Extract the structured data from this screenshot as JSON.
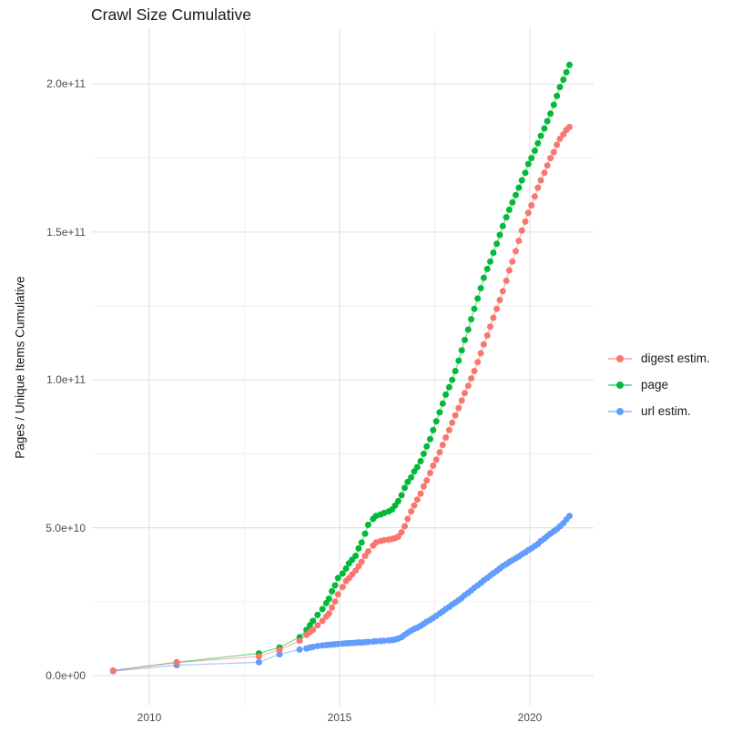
{
  "title": "Crawl Size Cumulative",
  "y_axis": {
    "label": "Pages / Unique Items Cumulative",
    "ticks": [
      {
        "label": "0.0e+00",
        "v": 0
      },
      {
        "label": "5.0e+10",
        "v": 5
      },
      {
        "label": "1.0e+11",
        "v": 10
      },
      {
        "label": "1.5e+11",
        "v": 15
      },
      {
        "label": "2.0e+11",
        "v": 20
      }
    ],
    "minor_v": [
      2.5,
      7.5,
      12.5,
      17.5
    ]
  },
  "x_axis": {
    "ticks": [
      {
        "label": "2010",
        "year": 2010
      },
      {
        "label": "2015",
        "year": 2015
      },
      {
        "label": "2020",
        "year": 2020
      }
    ],
    "minor_years": [
      2012.5,
      2017.5
    ]
  },
  "legend": {
    "items": [
      {
        "label": "digest estim.",
        "color": "#F8766D"
      },
      {
        "label": "page",
        "color": "#00BA38"
      },
      {
        "label": "url estim.",
        "color": "#619CFF"
      }
    ]
  },
  "chart_data": {
    "type": "line",
    "title": "Crawl Size Cumulative",
    "xlabel": "",
    "ylabel": "Pages / Unique Items Cumulative",
    "x_unit": "decimal year (crawl date)",
    "value_unit": "items, in units of 1e10 (e.g. 20.65 = 2.065e+11)",
    "xlim": [
      2008.4,
      2021.7
    ],
    "ylim": [
      0,
      220000000000.0
    ],
    "grid": true,
    "legend_position": "right",
    "marker": "point-on-line",
    "series": [
      {
        "name": "page",
        "color": "#00BA38",
        "points": [
          [
            2009.05,
            0.17
          ],
          [
            2010.72,
            0.45
          ],
          [
            2012.88,
            0.75
          ],
          [
            2013.42,
            0.95
          ],
          [
            2013.95,
            1.3
          ],
          [
            2014.13,
            1.55
          ],
          [
            2014.22,
            1.7
          ],
          [
            2014.3,
            1.85
          ],
          [
            2014.42,
            2.05
          ],
          [
            2014.55,
            2.25
          ],
          [
            2014.65,
            2.45
          ],
          [
            2014.72,
            2.6
          ],
          [
            2014.8,
            2.85
          ],
          [
            2014.88,
            3.05
          ],
          [
            2014.96,
            3.3
          ],
          [
            2015.08,
            3.45
          ],
          [
            2015.17,
            3.62
          ],
          [
            2015.25,
            3.8
          ],
          [
            2015.33,
            3.92
          ],
          [
            2015.42,
            4.05
          ],
          [
            2015.5,
            4.3
          ],
          [
            2015.58,
            4.5
          ],
          [
            2015.67,
            4.8
          ],
          [
            2015.75,
            5.1
          ],
          [
            2015.88,
            5.3
          ],
          [
            2015.96,
            5.4
          ],
          [
            2016.08,
            5.45
          ],
          [
            2016.17,
            5.5
          ],
          [
            2016.29,
            5.55
          ],
          [
            2016.38,
            5.62
          ],
          [
            2016.46,
            5.75
          ],
          [
            2016.54,
            5.9
          ],
          [
            2016.63,
            6.1
          ],
          [
            2016.71,
            6.35
          ],
          [
            2016.79,
            6.55
          ],
          [
            2016.88,
            6.7
          ],
          [
            2016.96,
            6.9
          ],
          [
            2017.04,
            7.05
          ],
          [
            2017.13,
            7.25
          ],
          [
            2017.21,
            7.5
          ],
          [
            2017.29,
            7.75
          ],
          [
            2017.38,
            8.0
          ],
          [
            2017.46,
            8.3
          ],
          [
            2017.54,
            8.6
          ],
          [
            2017.63,
            8.9
          ],
          [
            2017.71,
            9.2
          ],
          [
            2017.79,
            9.5
          ],
          [
            2017.88,
            9.75
          ],
          [
            2017.96,
            10.0
          ],
          [
            2018.04,
            10.3
          ],
          [
            2018.13,
            10.65
          ],
          [
            2018.21,
            11.0
          ],
          [
            2018.29,
            11.35
          ],
          [
            2018.38,
            11.7
          ],
          [
            2018.46,
            12.05
          ],
          [
            2018.54,
            12.4
          ],
          [
            2018.63,
            12.75
          ],
          [
            2018.71,
            13.1
          ],
          [
            2018.79,
            13.45
          ],
          [
            2018.88,
            13.75
          ],
          [
            2018.96,
            14.0
          ],
          [
            2019.04,
            14.3
          ],
          [
            2019.13,
            14.6
          ],
          [
            2019.21,
            14.9
          ],
          [
            2019.29,
            15.2
          ],
          [
            2019.38,
            15.5
          ],
          [
            2019.46,
            15.75
          ],
          [
            2019.54,
            16.0
          ],
          [
            2019.63,
            16.25
          ],
          [
            2019.71,
            16.5
          ],
          [
            2019.79,
            16.75
          ],
          [
            2019.88,
            17.0
          ],
          [
            2019.96,
            17.3
          ],
          [
            2020.04,
            17.5
          ],
          [
            2020.13,
            17.75
          ],
          [
            2020.21,
            18.0
          ],
          [
            2020.29,
            18.25
          ],
          [
            2020.38,
            18.5
          ],
          [
            2020.46,
            18.75
          ],
          [
            2020.54,
            19.0
          ],
          [
            2020.63,
            19.3
          ],
          [
            2020.71,
            19.6
          ],
          [
            2020.79,
            19.9
          ],
          [
            2020.88,
            20.15
          ],
          [
            2020.96,
            20.4
          ],
          [
            2021.04,
            20.65
          ]
        ]
      },
      {
        "name": "url estim.",
        "color": "#619CFF",
        "points": [
          [
            2009.05,
            0.15
          ],
          [
            2010.72,
            0.35
          ],
          [
            2012.88,
            0.45
          ],
          [
            2013.42,
            0.72
          ],
          [
            2013.95,
            0.88
          ],
          [
            2014.13,
            0.92
          ],
          [
            2014.22,
            0.95
          ],
          [
            2014.3,
            0.97
          ],
          [
            2014.42,
            1.0
          ],
          [
            2014.55,
            1.02
          ],
          [
            2014.65,
            1.03
          ],
          [
            2014.72,
            1.04
          ],
          [
            2014.8,
            1.05
          ],
          [
            2014.88,
            1.06
          ],
          [
            2014.96,
            1.07
          ],
          [
            2015.08,
            1.08
          ],
          [
            2015.17,
            1.09
          ],
          [
            2015.25,
            1.1
          ],
          [
            2015.33,
            1.1
          ],
          [
            2015.42,
            1.11
          ],
          [
            2015.5,
            1.12
          ],
          [
            2015.58,
            1.12
          ],
          [
            2015.67,
            1.13
          ],
          [
            2015.75,
            1.14
          ],
          [
            2015.88,
            1.15
          ],
          [
            2015.96,
            1.16
          ],
          [
            2016.08,
            1.17
          ],
          [
            2016.17,
            1.18
          ],
          [
            2016.29,
            1.19
          ],
          [
            2016.38,
            1.2
          ],
          [
            2016.46,
            1.22
          ],
          [
            2016.54,
            1.25
          ],
          [
            2016.63,
            1.3
          ],
          [
            2016.71,
            1.38
          ],
          [
            2016.79,
            1.45
          ],
          [
            2016.88,
            1.52
          ],
          [
            2016.96,
            1.58
          ],
          [
            2017.04,
            1.62
          ],
          [
            2017.13,
            1.68
          ],
          [
            2017.21,
            1.75
          ],
          [
            2017.29,
            1.82
          ],
          [
            2017.38,
            1.88
          ],
          [
            2017.46,
            1.95
          ],
          [
            2017.54,
            2.02
          ],
          [
            2017.63,
            2.1
          ],
          [
            2017.71,
            2.17
          ],
          [
            2017.79,
            2.25
          ],
          [
            2017.88,
            2.32
          ],
          [
            2017.96,
            2.4
          ],
          [
            2018.04,
            2.47
          ],
          [
            2018.13,
            2.55
          ],
          [
            2018.21,
            2.63
          ],
          [
            2018.29,
            2.72
          ],
          [
            2018.38,
            2.8
          ],
          [
            2018.46,
            2.88
          ],
          [
            2018.54,
            2.97
          ],
          [
            2018.63,
            3.05
          ],
          [
            2018.71,
            3.13
          ],
          [
            2018.79,
            3.22
          ],
          [
            2018.88,
            3.3
          ],
          [
            2018.96,
            3.38
          ],
          [
            2019.04,
            3.46
          ],
          [
            2019.13,
            3.54
          ],
          [
            2019.21,
            3.62
          ],
          [
            2019.29,
            3.7
          ],
          [
            2019.38,
            3.77
          ],
          [
            2019.46,
            3.84
          ],
          [
            2019.54,
            3.9
          ],
          [
            2019.63,
            3.97
          ],
          [
            2019.71,
            4.03
          ],
          [
            2019.79,
            4.1
          ],
          [
            2019.88,
            4.17
          ],
          [
            2019.96,
            4.24
          ],
          [
            2020.04,
            4.3
          ],
          [
            2020.13,
            4.38
          ],
          [
            2020.21,
            4.45
          ],
          [
            2020.29,
            4.55
          ],
          [
            2020.38,
            4.63
          ],
          [
            2020.46,
            4.72
          ],
          [
            2020.54,
            4.8
          ],
          [
            2020.63,
            4.88
          ],
          [
            2020.71,
            4.95
          ],
          [
            2020.79,
            5.05
          ],
          [
            2020.88,
            5.15
          ],
          [
            2020.96,
            5.28
          ],
          [
            2021.04,
            5.4
          ]
        ]
      },
      {
        "name": "digest estim.",
        "color": "#F8766D",
        "points": [
          [
            2009.05,
            0.17
          ],
          [
            2010.72,
            0.44
          ],
          [
            2012.88,
            0.65
          ],
          [
            2013.42,
            0.87
          ],
          [
            2013.95,
            1.18
          ],
          [
            2014.13,
            1.38
          ],
          [
            2014.22,
            1.47
          ],
          [
            2014.3,
            1.55
          ],
          [
            2014.42,
            1.7
          ],
          [
            2014.55,
            1.85
          ],
          [
            2014.65,
            2.0
          ],
          [
            2014.72,
            2.1
          ],
          [
            2014.8,
            2.3
          ],
          [
            2014.88,
            2.5
          ],
          [
            2014.96,
            2.75
          ],
          [
            2015.08,
            3.0
          ],
          [
            2015.17,
            3.2
          ],
          [
            2015.25,
            3.3
          ],
          [
            2015.33,
            3.42
          ],
          [
            2015.42,
            3.55
          ],
          [
            2015.5,
            3.7
          ],
          [
            2015.58,
            3.85
          ],
          [
            2015.67,
            4.05
          ],
          [
            2015.75,
            4.2
          ],
          [
            2015.88,
            4.4
          ],
          [
            2015.96,
            4.5
          ],
          [
            2016.08,
            4.55
          ],
          [
            2016.17,
            4.58
          ],
          [
            2016.29,
            4.6
          ],
          [
            2016.38,
            4.62
          ],
          [
            2016.46,
            4.65
          ],
          [
            2016.54,
            4.7
          ],
          [
            2016.63,
            4.85
          ],
          [
            2016.71,
            5.05
          ],
          [
            2016.79,
            5.3
          ],
          [
            2016.88,
            5.55
          ],
          [
            2016.96,
            5.75
          ],
          [
            2017.04,
            5.95
          ],
          [
            2017.13,
            6.15
          ],
          [
            2017.21,
            6.4
          ],
          [
            2017.29,
            6.6
          ],
          [
            2017.38,
            6.85
          ],
          [
            2017.46,
            7.1
          ],
          [
            2017.54,
            7.3
          ],
          [
            2017.63,
            7.55
          ],
          [
            2017.71,
            7.8
          ],
          [
            2017.79,
            8.05
          ],
          [
            2017.88,
            8.3
          ],
          [
            2017.96,
            8.55
          ],
          [
            2018.04,
            8.8
          ],
          [
            2018.13,
            9.05
          ],
          [
            2018.21,
            9.3
          ],
          [
            2018.29,
            9.55
          ],
          [
            2018.38,
            9.8
          ],
          [
            2018.46,
            10.05
          ],
          [
            2018.54,
            10.3
          ],
          [
            2018.63,
            10.6
          ],
          [
            2018.71,
            10.9
          ],
          [
            2018.79,
            11.2
          ],
          [
            2018.88,
            11.5
          ],
          [
            2018.96,
            11.8
          ],
          [
            2019.04,
            12.1
          ],
          [
            2019.13,
            12.4
          ],
          [
            2019.21,
            12.7
          ],
          [
            2019.29,
            13.0
          ],
          [
            2019.38,
            13.35
          ],
          [
            2019.46,
            13.7
          ],
          [
            2019.54,
            14.0
          ],
          [
            2019.63,
            14.35
          ],
          [
            2019.71,
            14.7
          ],
          [
            2019.79,
            15.05
          ],
          [
            2019.88,
            15.35
          ],
          [
            2019.96,
            15.65
          ],
          [
            2020.04,
            15.9
          ],
          [
            2020.13,
            16.2
          ],
          [
            2020.21,
            16.5
          ],
          [
            2020.29,
            16.75
          ],
          [
            2020.38,
            17.0
          ],
          [
            2020.46,
            17.25
          ],
          [
            2020.54,
            17.5
          ],
          [
            2020.63,
            17.7
          ],
          [
            2020.71,
            17.95
          ],
          [
            2020.79,
            18.15
          ],
          [
            2020.88,
            18.3
          ],
          [
            2020.96,
            18.45
          ],
          [
            2021.04,
            18.55
          ]
        ]
      }
    ]
  }
}
